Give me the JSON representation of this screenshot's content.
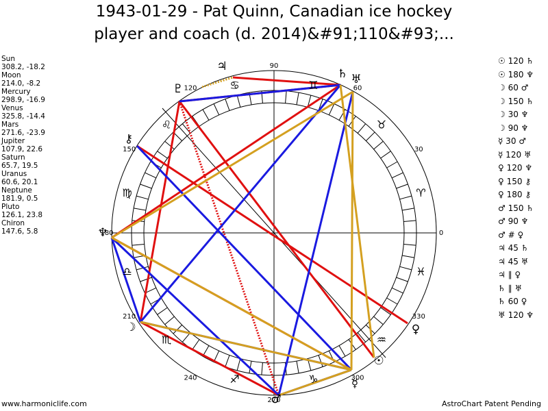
{
  "title": [
    "1943-01-29 - Pat Quinn, Canadian ice hockey",
    "player and coach (d. 2014)&#91;110&#93;..."
  ],
  "positions": [
    {
      "name": "Sun",
      "value": "308.2, -18.2"
    },
    {
      "name": "Moon",
      "value": "214.0, -8.2"
    },
    {
      "name": "Mercury",
      "value": "298.9, -16.9"
    },
    {
      "name": "Venus",
      "value": "325.8, -14.4"
    },
    {
      "name": "Mars",
      "value": "271.6, -23.9"
    },
    {
      "name": "Jupiter",
      "value": "107.9, 22.6"
    },
    {
      "name": "Saturn",
      "value": "65.7, 19.5"
    },
    {
      "name": "Uranus",
      "value": "60.6, 20.1"
    },
    {
      "name": "Neptune",
      "value": "181.9, 0.5"
    },
    {
      "name": "Pluto",
      "value": "126.1, 23.8"
    },
    {
      "name": "Chiron",
      "value": "147.6, 5.8"
    }
  ],
  "aspects": [
    "☉ 120 ♄",
    "☉ 180 ♆",
    "☽ 60 ♂",
    "☽ 150 ♄",
    "☽ 30 ♆",
    "☽ 90 ♆",
    "☿ 30 ♂",
    "☿ 120 ♅",
    "♀ 120 ♆",
    "♀ 150 ⚷",
    "♀ 180 ⚷",
    "♂ 150 ♄",
    "♂ 90 ♆",
    "♂ # ♀",
    "♃ 45 ♄",
    "♃ 45 ♅",
    "♃ ∥ ♀",
    "♄ ∥ ♅",
    "♄ 60 ♀",
    "♅ 120 ♆"
  ],
  "wheel_degrees": [
    0,
    30,
    60,
    90,
    120,
    150,
    180,
    210,
    240,
    270,
    300,
    330
  ],
  "zodiac": [
    "♈",
    "♉",
    "♊",
    "♋",
    "♌",
    "♍",
    "♎",
    "♏",
    "♐",
    "♑",
    "♒",
    "♓"
  ],
  "planet_glyphs": [
    "☉",
    "☽",
    "☿",
    "♀",
    "♂",
    "♃",
    "♄",
    "♅",
    "♆",
    "♇",
    "⚷"
  ],
  "footer": {
    "left": "www.harmoniclife.com",
    "right": "AstroChart Patent Pending"
  }
}
